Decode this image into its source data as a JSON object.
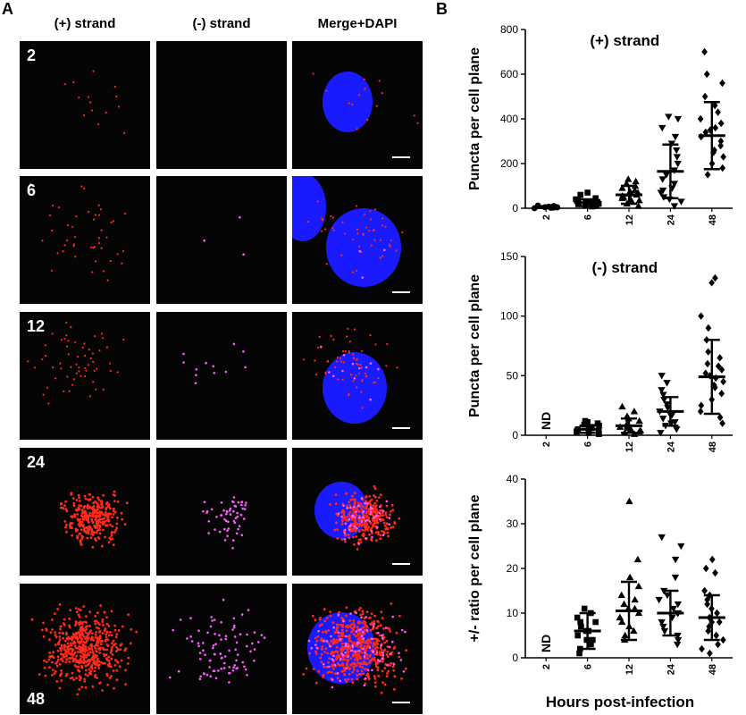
{
  "panel_a": {
    "letter": "A",
    "column_headers": [
      "(+) strand",
      "(-) strand",
      "Merge+DAPI"
    ],
    "time_labels": [
      "2",
      "6",
      "12",
      "24",
      "48"
    ]
  },
  "panel_b": {
    "letter": "B"
  },
  "colors": {
    "puncta_plus": "#ff2a1a",
    "puncta_minus": "#ff5cff",
    "nucleus": "#1a1aff",
    "background": "#050505"
  },
  "chart_data": [
    {
      "type": "scatter",
      "title": "(+) strand",
      "ylabel": "Puncta per cell plane",
      "xlabel": "",
      "categories": [
        "2",
        "6",
        "12",
        "24",
        "48"
      ],
      "marker_shapes": [
        "circle",
        "square",
        "triangle-up",
        "triangle-down",
        "diamond"
      ],
      "ylim": [
        0,
        800
      ],
      "yticks": [
        0,
        200,
        400,
        600,
        800
      ],
      "means": [
        5,
        25,
        60,
        165,
        325
      ],
      "sd": [
        4,
        15,
        40,
        120,
        150
      ],
      "points": [
        [
          0,
          2,
          3,
          4,
          5,
          6,
          7,
          8,
          10,
          12,
          4,
          6,
          3,
          5
        ],
        [
          8,
          12,
          15,
          18,
          20,
          22,
          25,
          28,
          30,
          35,
          40,
          45,
          60,
          70,
          15,
          20,
          10
        ],
        [
          10,
          20,
          30,
          40,
          50,
          55,
          60,
          70,
          80,
          90,
          100,
          110,
          120,
          130,
          35,
          45,
          65,
          75
        ],
        [
          10,
          30,
          50,
          70,
          90,
          110,
          130,
          150,
          170,
          200,
          230,
          260,
          290,
          320,
          360,
          400,
          410,
          40,
          80
        ],
        [
          150,
          180,
          200,
          230,
          260,
          280,
          300,
          320,
          340,
          360,
          380,
          400,
          430,
          460,
          500,
          560,
          600,
          700,
          250,
          350
        ]
      ],
      "annotations": []
    },
    {
      "type": "scatter",
      "title": "(-) strand",
      "ylabel": "Puncta per cell plane",
      "xlabel": "",
      "categories": [
        "2",
        "6",
        "12",
        "24",
        "48"
      ],
      "marker_shapes": [
        "none",
        "square",
        "triangle-up",
        "triangle-down",
        "diamond"
      ],
      "ylim": [
        0,
        150
      ],
      "yticks": [
        0,
        50,
        100,
        150
      ],
      "means": [
        null,
        5,
        8,
        20,
        49
      ],
      "sd": [
        null,
        3,
        6,
        12,
        31
      ],
      "points": [
        [],
        [
          1,
          2,
          3,
          4,
          5,
          6,
          7,
          8,
          9,
          10,
          11,
          12,
          3,
          5
        ],
        [
          1,
          2,
          4,
          6,
          8,
          10,
          12,
          14,
          16,
          20,
          24,
          5,
          7,
          3
        ],
        [
          2,
          5,
          8,
          11,
          14,
          17,
          20,
          23,
          26,
          30,
          34,
          38,
          44,
          50,
          10,
          18
        ],
        [
          10,
          15,
          20,
          25,
          30,
          35,
          40,
          45,
          48,
          50,
          52,
          55,
          58,
          60,
          65,
          70,
          80,
          90,
          100,
          128,
          132,
          42
        ]
      ],
      "annotations": [
        "ND"
      ]
    },
    {
      "type": "scatter",
      "title": "",
      "ylabel": "+/- ratio per cell plane",
      "xlabel": "Hours post-infection",
      "categories": [
        "2",
        "6",
        "12",
        "24",
        "48"
      ],
      "marker_shapes": [
        "none",
        "square",
        "triangle-up",
        "triangle-down",
        "diamond"
      ],
      "ylim": [
        0,
        40
      ],
      "yticks": [
        0,
        10,
        20,
        30,
        40
      ],
      "means": [
        null,
        6,
        10.5,
        10,
        9
      ],
      "sd": [
        null,
        4,
        6.5,
        5,
        5
      ],
      "points": [
        [],
        [
          1,
          2,
          3,
          4,
          5,
          6,
          7,
          8,
          9,
          10,
          11,
          4,
          6,
          8
        ],
        [
          4,
          5,
          6,
          7,
          8,
          9,
          10,
          11,
          12,
          13,
          14,
          16,
          18,
          22,
          35,
          9,
          11
        ],
        [
          3,
          4,
          5,
          6,
          7,
          8,
          9,
          10,
          11,
          12,
          13,
          14,
          15,
          18,
          22,
          25,
          27,
          10
        ],
        [
          1,
          2,
          3,
          4,
          5,
          6,
          7,
          8,
          9,
          10,
          11,
          12,
          13,
          14,
          15,
          19,
          20,
          22,
          8
        ]
      ],
      "annotations": [
        "ND"
      ]
    }
  ]
}
